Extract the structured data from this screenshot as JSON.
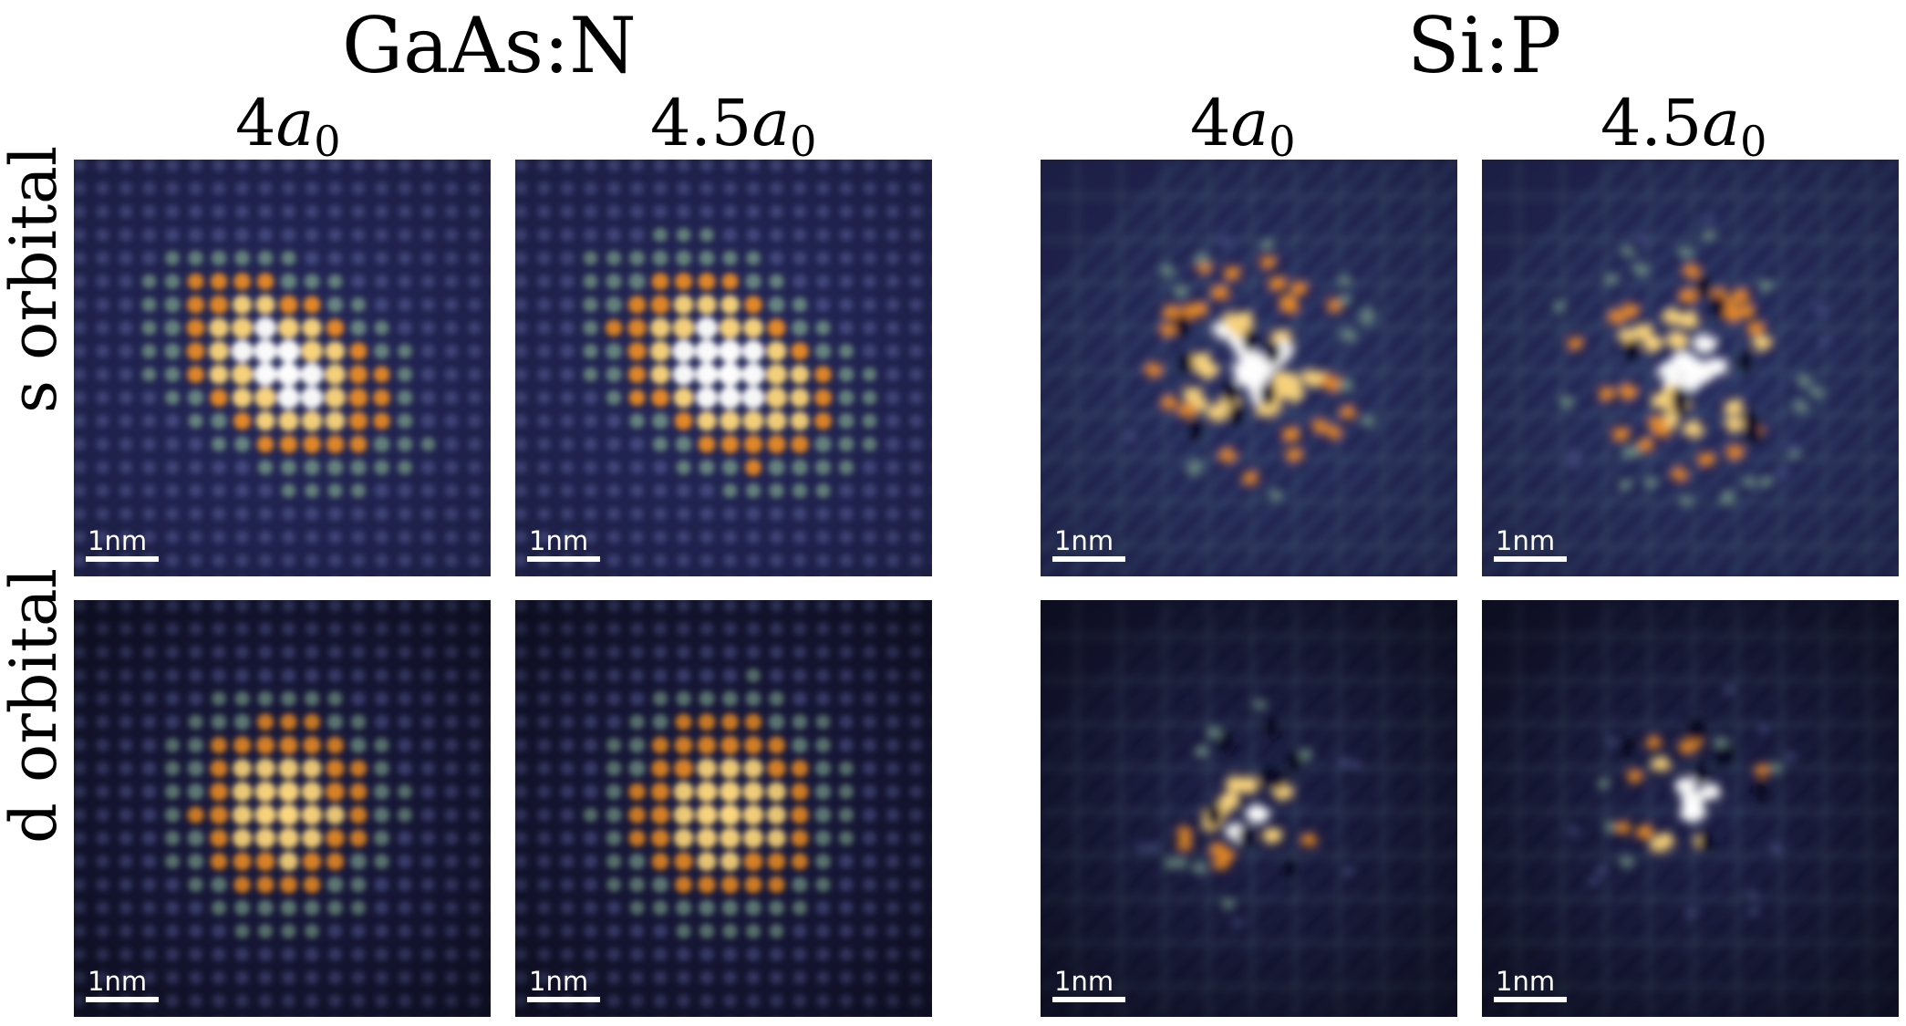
{
  "groups": {
    "gaas": {
      "title": "GaAs:N"
    },
    "sip": {
      "title": "Si:P"
    }
  },
  "columns": {
    "c4": {
      "prefix": "4",
      "italic": "a",
      "sub": "0"
    },
    "c45": {
      "prefix": "4.5",
      "italic": "a",
      "sub": "0"
    }
  },
  "rows": {
    "s": {
      "label": "s orbital"
    },
    "d": {
      "label": "d orbital"
    }
  },
  "scale_bar": {
    "label": "1nm"
  },
  "colormap": {
    "background": "#25285a",
    "mid": "#6f8f8a",
    "orange": "#f0902a",
    "yellow": "#ffd980",
    "white": "#ffffff"
  }
}
